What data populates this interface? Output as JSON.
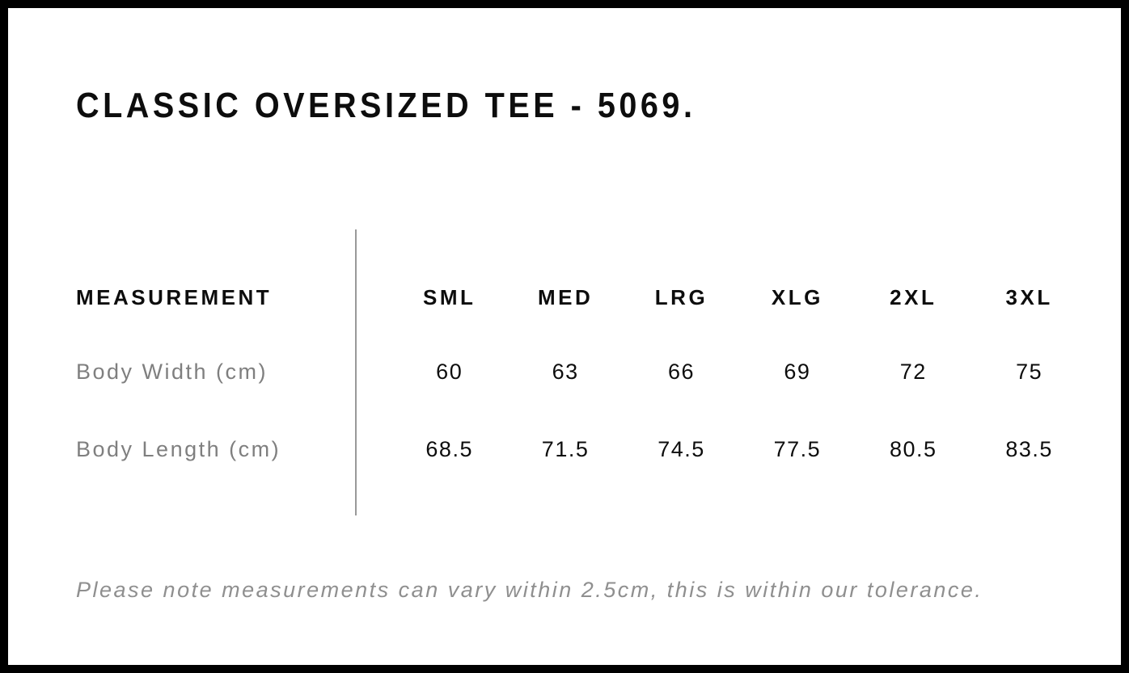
{
  "page": {
    "title": "CLASSIC OVERSIZED TEE - 5069.",
    "frame_color": "#000000",
    "background_color": "#ffffff"
  },
  "size_chart": {
    "header_label": "MEASUREMENT",
    "sizes": [
      "SML",
      "MED",
      "LRG",
      "XLG",
      "2XL",
      "3XL"
    ],
    "rows": [
      {
        "label": "Body Width (cm)",
        "values": [
          "60",
          "63",
          "66",
          "69",
          "72",
          "75"
        ]
      },
      {
        "label": "Body Length (cm)",
        "values": [
          "68.5",
          "71.5",
          "74.5",
          "77.5",
          "80.5",
          "83.5"
        ]
      }
    ],
    "note": "Please note measurements can vary within 2.5cm, this is within our tolerance.",
    "colors": {
      "text_primary": "#0d0d0d",
      "text_muted": "#7f7f7f",
      "divider": "#999999",
      "note_text": "#8f8f8f"
    }
  },
  "chart_data": {
    "type": "table",
    "title": "CLASSIC OVERSIZED TEE - 5069.",
    "columns": [
      "MEASUREMENT",
      "SML",
      "MED",
      "LRG",
      "XLG",
      "2XL",
      "3XL"
    ],
    "rows": [
      [
        "Body Width (cm)",
        60,
        63,
        66,
        69,
        72,
        75
      ],
      [
        "Body Length (cm)",
        68.5,
        71.5,
        74.5,
        77.5,
        80.5,
        83.5
      ]
    ],
    "note": "Please note measurements can vary within 2.5cm, this is within our tolerance."
  }
}
